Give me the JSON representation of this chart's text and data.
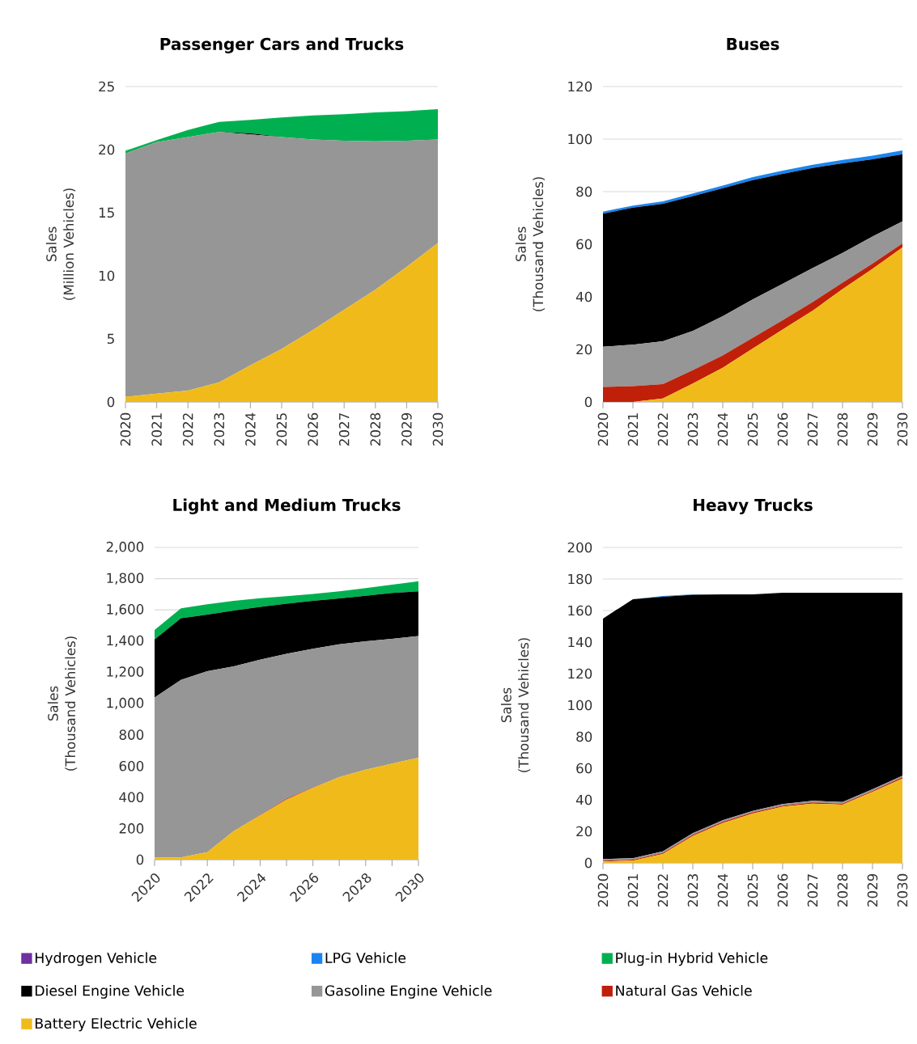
{
  "chart_data": [
    {
      "type": "area",
      "title": "Passenger Cars and Trucks",
      "ylabel": "Sales (Million Vehicles)",
      "stacked": true,
      "grid": "y",
      "categories": [
        "2020",
        "2021",
        "2022",
        "2023",
        "2024",
        "2025",
        "2026",
        "2027",
        "2028",
        "2029",
        "2030"
      ],
      "ylim": [
        0,
        25
      ],
      "yticks": [
        0,
        5,
        10,
        15,
        20,
        25
      ],
      "series": [
        {
          "color": "#f0bb1a",
          "values": [
            0.4,
            0.65,
            0.9,
            1.55,
            2.9,
            4.2,
            5.7,
            7.3,
            8.9,
            10.7,
            12.6
          ]
        },
        {
          "color": "#969696",
          "values": [
            19.3,
            19.95,
            20.1,
            19.85,
            18.3,
            16.8,
            15.1,
            13.4,
            11.75,
            10.0,
            8.2
          ]
        },
        {
          "color": "#000000",
          "values": [
            0,
            0,
            0,
            0,
            0.1,
            0,
            0,
            0,
            0,
            0,
            0
          ]
        },
        {
          "color": "#00b050",
          "values": [
            0.2,
            0.15,
            0.55,
            0.8,
            1.05,
            1.55,
            1.9,
            2.1,
            2.3,
            2.35,
            2.4
          ]
        }
      ]
    },
    {
      "type": "area",
      "title": "Buses",
      "ylabel": "Sales (Thousand Vehicles)",
      "stacked": true,
      "grid": "y",
      "categories": [
        "2020",
        "2021",
        "2022",
        "2023",
        "2024",
        "2025",
        "2026",
        "2027",
        "2028",
        "2029",
        "2030"
      ],
      "ylim": [
        0,
        120
      ],
      "yticks": [
        0,
        20,
        40,
        60,
        80,
        100,
        120
      ],
      "series": [
        {
          "color": "#f0bb1a",
          "values": [
            0,
            0,
            1.3,
            7,
            13,
            20.3,
            27.5,
            34.7,
            42.9,
            50.6,
            58.8
          ]
        },
        {
          "color": "#c0200a",
          "values": [
            5.7,
            6,
            5.5,
            5.1,
            4.7,
            4.1,
            3.6,
            3.3,
            2.5,
            2.0,
            1.5
          ]
        },
        {
          "color": "#969696",
          "values": [
            15.3,
            15.8,
            16.3,
            14.9,
            14.9,
            14.6,
            13.8,
            12.9,
            11.3,
            10.3,
            8.4
          ]
        },
        {
          "color": "#000000",
          "values": [
            50.6,
            52.1,
            52.3,
            51.3,
            48.7,
            45.4,
            41.9,
            38.1,
            34.1,
            29.4,
            25.5
          ]
        },
        {
          "color": "#1a85f0",
          "values": [
            0.8,
            0.8,
            0.9,
            1,
            1,
            1.1,
            1.2,
            1.2,
            1.3,
            1.4,
            1.5
          ]
        }
      ]
    },
    {
      "type": "area",
      "title": "Light and Medium Trucks",
      "ylabel": "Sales (Thousand Vehicles)",
      "stacked": true,
      "grid": "y",
      "legend": "bottom",
      "categories": [
        "2020",
        null,
        "2022",
        null,
        "2024",
        null,
        "2026",
        null,
        "2028",
        null,
        "2030"
      ],
      "ylim": [
        0,
        2000
      ],
      "yticks": [
        0,
        200,
        400,
        600,
        800,
        {
          "value": 1000,
          "label": "1,000"
        },
        {
          "value": 1200,
          "label": "1,200"
        },
        {
          "value": 1400,
          "label": "1,400"
        },
        {
          "value": 1600,
          "label": "1,600"
        },
        {
          "value": 1800,
          "label": "1,800"
        },
        {
          "value": 2000,
          "label": "2,000"
        }
      ],
      "series": [
        {
          "name": "Battery Electric Vehicle",
          "color": "#f0bb1a",
          "values": [
            14,
            14,
            48,
            182,
            284,
            385,
            460,
            528,
            577,
            615,
            653
          ]
        },
        {
          "name": "Natural Gas Vehicle",
          "color": "#c0200a",
          "values": [
            0,
            0,
            0,
            0,
            2,
            5,
            2,
            0,
            0,
            0,
            0
          ]
        },
        {
          "name": "Gasoline Engine Vehicle",
          "color": "#969696",
          "values": [
            1025,
            1137,
            1159,
            1056,
            995,
            929,
            889,
            852,
            822,
            799,
            779
          ]
        },
        {
          "name": "Diesel Engine Vehicle",
          "color": "#000000",
          "values": [
            372,
            395,
            363,
            358,
            338,
            321,
            307,
            294,
            292,
            294,
            287
          ]
        },
        {
          "name": "Plug-in Hybrid Vehicle",
          "color": "#00b050",
          "values": [
            61,
            64,
            66,
            62,
            56,
            48,
            44,
            45,
            49,
            53,
            65
          ]
        },
        {
          "name": "LPG Vehicle",
          "color": "#1a85f0",
          "values": [
            null,
            null,
            null,
            null,
            null,
            null,
            null,
            null,
            null,
            null,
            null
          ]
        },
        {
          "name": "Hydrogen Vehicle",
          "color": "#7030a0",
          "values": [
            null,
            null,
            null,
            null,
            null,
            null,
            null,
            null,
            null,
            null,
            null
          ]
        }
      ]
    },
    {
      "type": "area",
      "title": "Heavy Trucks",
      "ylabel": "Sales (Thousand Vehicles)",
      "stacked": true,
      "grid": "y",
      "categories": [
        "2020",
        "2021",
        "2022",
        "2023",
        "2024",
        "2025",
        "2026",
        "2027",
        "2028",
        "2029",
        "2030"
      ],
      "ylim": [
        0,
        200
      ],
      "yticks": [
        0,
        20,
        40,
        60,
        80,
        100,
        120,
        140,
        160,
        180,
        200
      ],
      "series": [
        {
          "color": "#f0bb1a",
          "values": [
            0.9,
            1.4,
            5.6,
            17.1,
            25.3,
            31.3,
            35.6,
            37.6,
            36.9,
            45,
            53.5
          ]
        },
        {
          "color": "#c0200a",
          "values": [
            0.5,
            0.6,
            0.7,
            0.7,
            0.7,
            0.7,
            0.7,
            0.7,
            0.7,
            0.7,
            0.8
          ]
        },
        {
          "color": "#969696",
          "values": [
            1,
            1,
            1,
            1,
            1,
            1,
            1,
            1,
            1,
            1,
            1
          ]
        },
        {
          "color": "#000000",
          "values": [
            152.5,
            164.2,
            161.4,
            151.2,
            143.3,
            137.3,
            134,
            132,
            132.7,
            124.6,
            116
          ]
        },
        {
          "color": "#1a85f0",
          "values": [
            0,
            0,
            0.5,
            0.3,
            0,
            0,
            0,
            0,
            0,
            0,
            0
          ]
        }
      ]
    }
  ]
}
